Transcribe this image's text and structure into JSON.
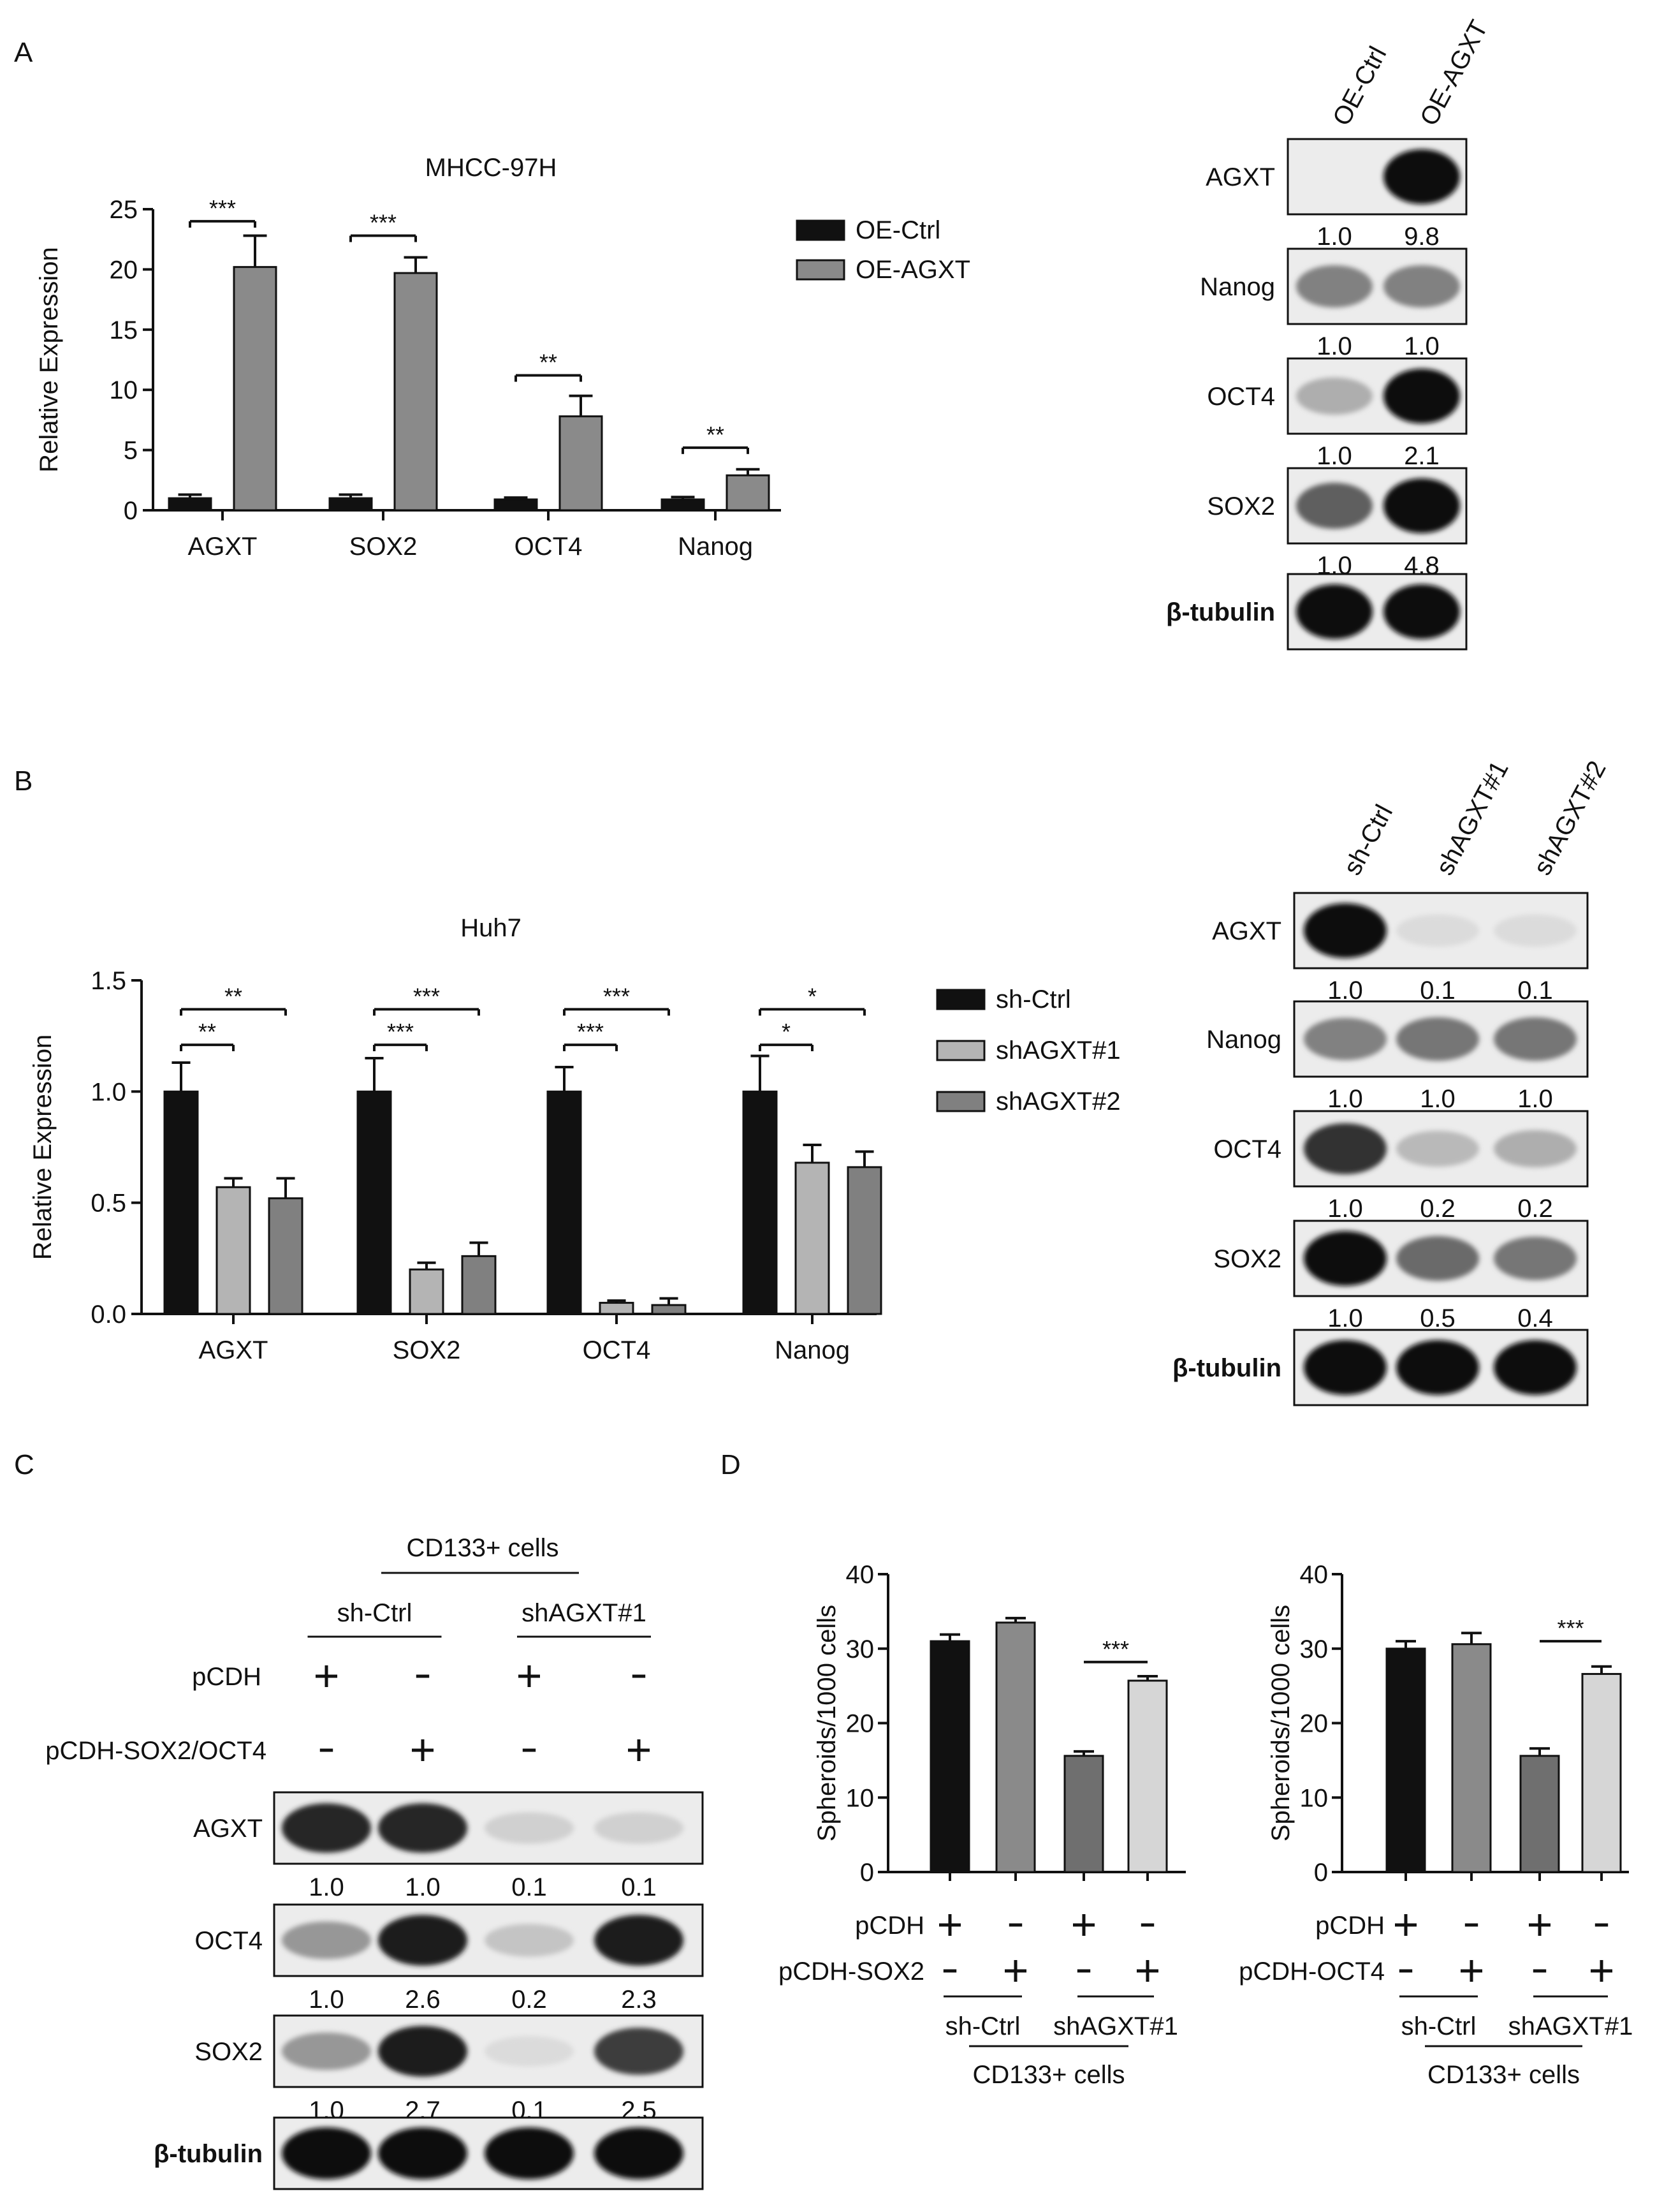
{
  "panels": {
    "A": "A",
    "B": "B",
    "C": "C",
    "D": "D"
  },
  "colors": {
    "black": "#111111",
    "dark_gray": "#6f6f6f",
    "mid_gray": "#8a8a8a",
    "light_gray": "#b4b4b4",
    "lighter_gray": "#d6d6d6",
    "blot_bg": "#e9e9e9"
  },
  "chart_data": [
    {
      "id": "A",
      "type": "bar",
      "title": "MHCC-97H",
      "ylabel": "Relative Expression",
      "ylim": [
        0,
        25
      ],
      "yticks": [
        "0",
        "5",
        "10",
        "15",
        "20",
        "25"
      ],
      "categories": [
        "AGXT",
        "SOX2",
        "OCT4",
        "Nanog"
      ],
      "series": [
        {
          "name": "OE-Ctrl",
          "color": "#111111",
          "values": [
            1.0,
            1.0,
            0.9,
            0.9
          ],
          "err": [
            0.3,
            0.3,
            0.15,
            0.2
          ]
        },
        {
          "name": "OE-AGXT",
          "color": "#8a8a8a",
          "values": [
            20.2,
            19.7,
            7.8,
            2.9
          ],
          "err": [
            2.6,
            1.3,
            1.7,
            0.5
          ]
        }
      ],
      "significance": [
        {
          "category": 0,
          "from": 0,
          "to": 1,
          "y": 24.0,
          "label": "***"
        },
        {
          "category": 1,
          "from": 0,
          "to": 1,
          "y": 22.8,
          "label": "***"
        },
        {
          "category": 2,
          "from": 0,
          "to": 1,
          "y": 11.2,
          "label": "**"
        },
        {
          "category": 3,
          "from": 0,
          "to": 1,
          "y": 5.2,
          "label": "**"
        }
      ],
      "legend": "right"
    },
    {
      "id": "B",
      "type": "bar",
      "title": "Huh7",
      "ylabel": "Relative Expression",
      "ylim": [
        0,
        1.5
      ],
      "yticks": [
        "0.0",
        "0.5",
        "1.0",
        "1.5"
      ],
      "categories": [
        "AGXT",
        "SOX2",
        "OCT4",
        "Nanog"
      ],
      "series": [
        {
          "name": "sh-Ctrl",
          "color": "#111111",
          "values": [
            1.0,
            1.0,
            1.0,
            1.0
          ],
          "err": [
            0.13,
            0.15,
            0.11,
            0.16
          ]
        },
        {
          "name": "shAGXT#1",
          "color": "#b4b4b4",
          "values": [
            0.57,
            0.2,
            0.05,
            0.68
          ],
          "err": [
            0.04,
            0.03,
            0.01,
            0.08
          ]
        },
        {
          "name": "shAGXT#2",
          "color": "#808080",
          "values": [
            0.52,
            0.26,
            0.04,
            0.66
          ],
          "err": [
            0.09,
            0.06,
            0.03,
            0.07
          ]
        }
      ],
      "significance": [
        {
          "category": 0,
          "from": 0,
          "to": 2,
          "y": 1.37,
          "label": "**"
        },
        {
          "category": 0,
          "from": 0,
          "to": 1,
          "y": 1.21,
          "label": "**"
        },
        {
          "category": 1,
          "from": 0,
          "to": 2,
          "y": 1.37,
          "label": "***"
        },
        {
          "category": 1,
          "from": 0,
          "to": 1,
          "y": 1.21,
          "label": "***"
        },
        {
          "category": 2,
          "from": 0,
          "to": 2,
          "y": 1.37,
          "label": "***"
        },
        {
          "category": 2,
          "from": 0,
          "to": 1,
          "y": 1.21,
          "label": "***"
        },
        {
          "category": 3,
          "from": 0,
          "to": 2,
          "y": 1.37,
          "label": "*"
        },
        {
          "category": 3,
          "from": 0,
          "to": 1,
          "y": 1.21,
          "label": "*"
        }
      ],
      "legend": "right"
    },
    {
      "id": "D1",
      "type": "bar",
      "ylabel": "Spheroids/1000 cells",
      "ylim": [
        0,
        40
      ],
      "yticks": [
        "0",
        "10",
        "20",
        "30",
        "40"
      ],
      "values": [
        31.0,
        33.5,
        15.6,
        25.7
      ],
      "err": [
        0.9,
        0.6,
        0.6,
        0.6
      ],
      "colors": [
        "#111111",
        "#8a8a8a",
        "#6f6f6f",
        "#d6d6d6"
      ],
      "significance": [
        {
          "from": 2,
          "to": 3,
          "y": 28.2,
          "label": "***"
        }
      ],
      "rows": [
        {
          "label": "pCDH",
          "marks": [
            "+",
            "-",
            "+",
            "-"
          ]
        },
        {
          "label": "pCDH-SOX2",
          "marks": [
            "-",
            "+",
            "-",
            "+"
          ]
        }
      ],
      "groups": [
        "sh-Ctrl",
        "shAGXT#1"
      ],
      "group_label": "CD133+ cells"
    },
    {
      "id": "D2",
      "type": "bar",
      "ylabel": "Spheroids/1000 cells",
      "ylim": [
        0,
        40
      ],
      "yticks": [
        "0",
        "10",
        "20",
        "30",
        "40"
      ],
      "values": [
        30.0,
        30.6,
        15.6,
        26.6
      ],
      "err": [
        1.0,
        1.5,
        1.0,
        1.0
      ],
      "colors": [
        "#111111",
        "#8a8a8a",
        "#6f6f6f",
        "#d6d6d6"
      ],
      "significance": [
        {
          "from": 2,
          "to": 3,
          "y": 31.0,
          "label": "***"
        }
      ],
      "rows": [
        {
          "label": "pCDH",
          "marks": [
            "+",
            "-",
            "+",
            "-"
          ]
        },
        {
          "label": "pCDH-OCT4",
          "marks": [
            "-",
            "+",
            "-",
            "+"
          ]
        }
      ],
      "groups": [
        "sh-Ctrl",
        "shAGXT#1"
      ],
      "group_label": "CD133+ cells"
    }
  ],
  "blots": {
    "A": {
      "lanes": [
        "OE-Ctrl",
        "OE-AGXT"
      ],
      "rows": [
        {
          "label": "AGXT",
          "intensity": [
            0.0,
            0.95
          ],
          "quant": [
            "1.0",
            "9.8"
          ]
        },
        {
          "label": "Nanog",
          "intensity": [
            0.45,
            0.45
          ],
          "quant": [
            "1.0",
            "1.0"
          ]
        },
        {
          "label": "OCT4",
          "intensity": [
            0.25,
            0.95
          ],
          "quant": [
            "1.0",
            "2.1"
          ]
        },
        {
          "label": "SOX2",
          "intensity": [
            0.6,
            0.95
          ],
          "quant": [
            "1.0",
            "4.8"
          ]
        },
        {
          "label": "β-tubulin",
          "intensity": [
            0.95,
            0.95
          ],
          "quant": [],
          "bold": true
        }
      ]
    },
    "B": {
      "lanes": [
        "sh-Ctrl",
        "shAGXT#1",
        "shAGXT#2"
      ],
      "rows": [
        {
          "label": "AGXT",
          "intensity": [
            0.95,
            0.05,
            0.05
          ],
          "quant": [
            "1.0",
            "0.1",
            "0.1"
          ]
        },
        {
          "label": "Nanog",
          "intensity": [
            0.45,
            0.5,
            0.5
          ],
          "quant": [
            "1.0",
            "1.0",
            "1.0"
          ]
        },
        {
          "label": "OCT4",
          "intensity": [
            0.8,
            0.2,
            0.25
          ],
          "quant": [
            "1.0",
            "0.2",
            "0.2"
          ]
        },
        {
          "label": "SOX2",
          "intensity": [
            0.95,
            0.55,
            0.5
          ],
          "quant": [
            "1.0",
            "0.5",
            "0.4"
          ]
        },
        {
          "label": "β-tubulin",
          "intensity": [
            0.95,
            0.95,
            0.95
          ],
          "quant": [],
          "bold": true
        }
      ]
    },
    "C": {
      "header": "CD133+ cells",
      "groups": [
        "sh-Ctrl",
        "shAGXT#1"
      ],
      "conditions": [
        {
          "label": "pCDH",
          "marks": [
            "+",
            "-",
            "+",
            "-"
          ]
        },
        {
          "label": "pCDH-SOX2/OCT4",
          "marks": [
            "-",
            "+",
            "-",
            "+"
          ]
        }
      ],
      "rows": [
        {
          "label": "AGXT",
          "intensity": [
            0.85,
            0.85,
            0.1,
            0.1
          ],
          "quant": [
            "1.0",
            "1.0",
            "0.1",
            "0.1"
          ]
        },
        {
          "label": "OCT4",
          "intensity": [
            0.35,
            0.9,
            0.15,
            0.9
          ],
          "quant": [
            "1.0",
            "2.6",
            "0.2",
            "2.3"
          ]
        },
        {
          "label": "SOX2",
          "intensity": [
            0.35,
            0.9,
            0.05,
            0.75
          ],
          "quant": [
            "1.0",
            "2.7",
            "0.1",
            "2.5"
          ]
        },
        {
          "label": "β-tubulin",
          "intensity": [
            0.95,
            0.95,
            0.95,
            0.95
          ],
          "quant": [],
          "bold": true
        }
      ]
    }
  }
}
